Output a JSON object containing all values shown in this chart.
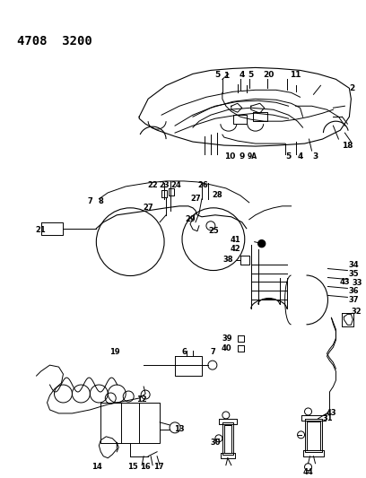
{
  "title": "4708  3200",
  "bg_color": "#ffffff",
  "line_color": "#000000",
  "text_color": "#000000",
  "fig_width": 4.08,
  "fig_height": 5.33,
  "dpi": 100
}
